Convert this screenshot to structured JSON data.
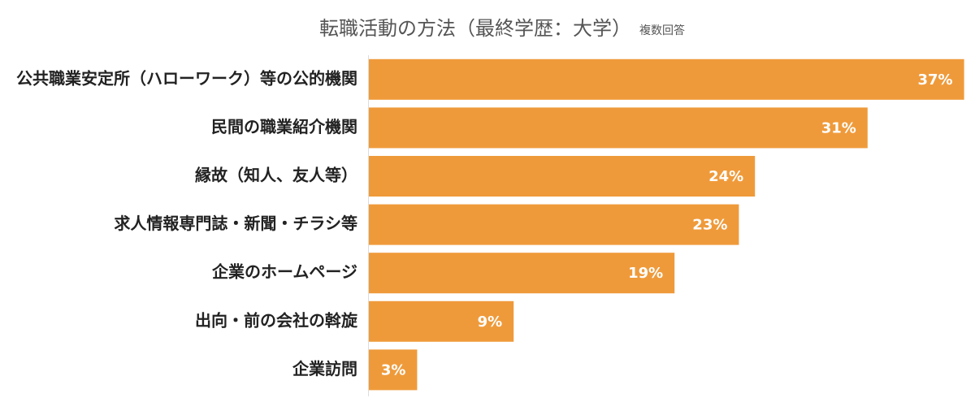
{
  "chart_data": {
    "type": "bar",
    "orientation": "horizontal",
    "title": "転職活動の方法（最終学歴：大学）",
    "subtitle": "複数回答",
    "categories": [
      "公共職業安定所（ハローワーク）等の公的機関",
      "民間の職業紹介機関",
      "縁故（知人、友人等）",
      "求人情報専門誌・新聞・チラシ等",
      "企業のホームページ",
      "出向・前の会社の斡旋",
      "企業訪問"
    ],
    "values": [
      37,
      31,
      24,
      23,
      19,
      9,
      3
    ],
    "value_labels": [
      "37%",
      "31%",
      "24%",
      "23%",
      "19%",
      "9%",
      "3%"
    ],
    "color": "#ef9a3a"
  }
}
